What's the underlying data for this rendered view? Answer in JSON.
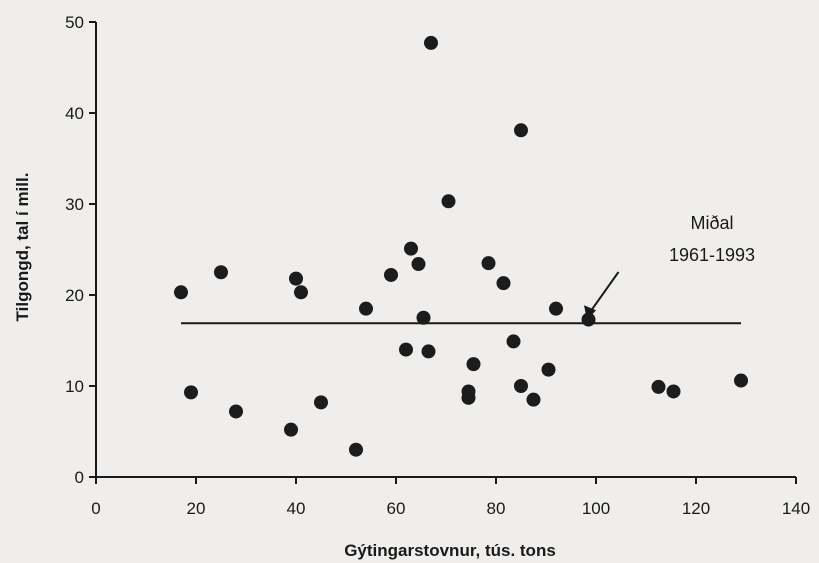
{
  "chart_data": {
    "type": "scatter",
    "xlabel": "Gýtingarstovnur, tús. tons",
    "ylabel": "Tilgongd, tal í mill.",
    "xlim": [
      0,
      140
    ],
    "ylim": [
      0,
      50
    ],
    "xticks": [
      0,
      20,
      40,
      60,
      80,
      100,
      120,
      140
    ],
    "yticks": [
      0,
      10,
      20,
      30,
      40,
      50
    ],
    "grid": false,
    "points": [
      {
        "x": 17,
        "y": 20.3
      },
      {
        "x": 19,
        "y": 9.3
      },
      {
        "x": 25,
        "y": 22.5
      },
      {
        "x": 28,
        "y": 7.2
      },
      {
        "x": 39,
        "y": 5.2
      },
      {
        "x": 40,
        "y": 21.8
      },
      {
        "x": 41,
        "y": 20.3
      },
      {
        "x": 45,
        "y": 8.2
      },
      {
        "x": 52,
        "y": 3.0
      },
      {
        "x": 54,
        "y": 18.5
      },
      {
        "x": 59,
        "y": 22.2
      },
      {
        "x": 62,
        "y": 14.0
      },
      {
        "x": 63,
        "y": 25.1
      },
      {
        "x": 64.5,
        "y": 23.4
      },
      {
        "x": 65.5,
        "y": 17.5
      },
      {
        "x": 66.5,
        "y": 13.8
      },
      {
        "x": 67,
        "y": 47.7
      },
      {
        "x": 70.5,
        "y": 30.3
      },
      {
        "x": 74.5,
        "y": 8.7
      },
      {
        "x": 74.5,
        "y": 9.4
      },
      {
        "x": 75.5,
        "y": 12.4
      },
      {
        "x": 78.5,
        "y": 23.5
      },
      {
        "x": 81.5,
        "y": 21.3
      },
      {
        "x": 83.5,
        "y": 14.9
      },
      {
        "x": 85,
        "y": 10.0
      },
      {
        "x": 85,
        "y": 38.1
      },
      {
        "x": 87.5,
        "y": 8.5
      },
      {
        "x": 90.5,
        "y": 11.8
      },
      {
        "x": 92,
        "y": 18.5
      },
      {
        "x": 98.5,
        "y": 17.3
      },
      {
        "x": 112.5,
        "y": 9.9
      },
      {
        "x": 115.5,
        "y": 9.4
      },
      {
        "x": 129,
        "y": 10.6
      }
    ],
    "reference_line": {
      "label_line1": "Miðal",
      "label_line2": "1961-1993",
      "y": 16.9,
      "x_start": 17,
      "x_end": 129
    }
  }
}
